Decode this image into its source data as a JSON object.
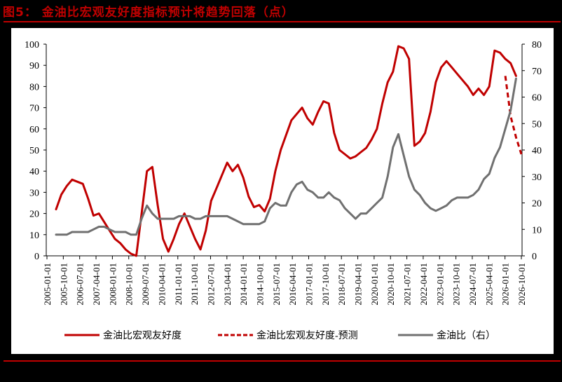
{
  "header": {
    "title": "图5：  金油比宏观友好度指标预计将趋势回落（点）"
  },
  "colors": {
    "background": "#000000",
    "panel": "#ffffff",
    "accent_red": "#c00000",
    "series_red": "#c00000",
    "series_gray": "#707070",
    "axis": "#000000"
  },
  "chart_data": {
    "type": "line",
    "title": "金油比宏观友好度指标预计将趋势回落（点）",
    "xlabel": "",
    "ylabel_left": "",
    "ylabel_right": "",
    "ylim_left": [
      0,
      100
    ],
    "ylim_right": [
      0,
      80
    ],
    "yticks_left": [
      0,
      10,
      20,
      30,
      40,
      50,
      60,
      70,
      80,
      90,
      100
    ],
    "yticks_right": [
      0,
      10,
      20,
      30,
      40,
      50,
      60,
      70,
      80
    ],
    "grid": false,
    "legend_position": "bottom",
    "x_tick_labels": [
      "2005-01-01",
      "2005-10-01",
      "2006-07-01",
      "2007-04-01",
      "2008-01-01",
      "2008-10-01",
      "2009-07-01",
      "2010-04-01",
      "2011-01-01",
      "2011-10-01",
      "2012-07-01",
      "2013-04-01",
      "2014-01-01",
      "2014-10-01",
      "2015-07-01",
      "2016-04-01",
      "2017-01-01",
      "2017-10-01",
      "2018-07-01",
      "2019-04-01",
      "2020-01-01",
      "2020-10-01",
      "2021-07-01",
      "2022-04-01",
      "2023-01-01",
      "2023-10-01",
      "2024-07-01",
      "2025-04-01",
      "2026-01-01",
      "2026-10-01"
    ],
    "x": [
      "2005-01",
      "2005-04",
      "2005-07",
      "2005-10",
      "2006-01",
      "2006-04",
      "2006-07",
      "2006-10",
      "2007-01",
      "2007-04",
      "2007-07",
      "2007-10",
      "2008-01",
      "2008-04",
      "2008-07",
      "2008-10",
      "2009-01",
      "2009-04",
      "2009-07",
      "2009-10",
      "2010-01",
      "2010-04",
      "2010-07",
      "2010-10",
      "2011-01",
      "2011-04",
      "2011-07",
      "2011-10",
      "2012-01",
      "2012-04",
      "2012-07",
      "2012-10",
      "2013-01",
      "2013-04",
      "2013-07",
      "2013-10",
      "2014-01",
      "2014-04",
      "2014-07",
      "2014-10",
      "2015-01",
      "2015-04",
      "2015-07",
      "2015-10",
      "2016-01",
      "2016-04",
      "2016-07",
      "2016-10",
      "2017-01",
      "2017-04",
      "2017-07",
      "2017-10",
      "2018-01",
      "2018-04",
      "2018-07",
      "2018-10",
      "2019-01",
      "2019-04",
      "2019-07",
      "2019-10",
      "2020-01",
      "2020-04",
      "2020-07",
      "2020-10",
      "2021-01",
      "2021-04",
      "2021-07",
      "2021-10",
      "2022-01",
      "2022-04",
      "2022-07",
      "2022-10",
      "2023-01",
      "2023-04",
      "2023-07",
      "2023-10",
      "2024-01",
      "2024-04",
      "2024-07",
      "2024-10",
      "2025-01",
      "2025-04",
      "2025-07",
      "2025-10",
      "2026-01",
      "2026-04",
      "2026-07",
      "2026-10"
    ],
    "series": [
      {
        "name": "金油比宏观友好度",
        "axis": "left",
        "style": "solid",
        "values": [
          22,
          29,
          33,
          36,
          35,
          34,
          27,
          19,
          20,
          16,
          12,
          8,
          6,
          3,
          1,
          0,
          20,
          40,
          42,
          24,
          8,
          2,
          8,
          15,
          20,
          14,
          8,
          3,
          12,
          26,
          32,
          38,
          44,
          40,
          43,
          37,
          28,
          23,
          24,
          21,
          27,
          40,
          50,
          57,
          64,
          67,
          70,
          65,
          62,
          68,
          73,
          72,
          58,
          50,
          48,
          46,
          47,
          49,
          51,
          55,
          60,
          72,
          82,
          87,
          99,
          98,
          93,
          52,
          54,
          58,
          68,
          82,
          89,
          92,
          89,
          86,
          83,
          80,
          76,
          79,
          76,
          80,
          97,
          96,
          93,
          91,
          85,
          null
        ],
        "values_approx": true
      },
      {
        "name": "金油比宏观友好度-预测",
        "axis": "left",
        "style": "dashed",
        "values_start_index": 84,
        "values": [
          85,
          66,
          56,
          48
        ]
      },
      {
        "name": "金油比（右）",
        "axis": "right",
        "style": "solid",
        "values": [
          8,
          8,
          8,
          9,
          9,
          9,
          9,
          10,
          11,
          11,
          10,
          9,
          9,
          9,
          8,
          8,
          14,
          19,
          16,
          14,
          14,
          14,
          14,
          15,
          15,
          15,
          14,
          14,
          15,
          15,
          15,
          15,
          15,
          14,
          13,
          12,
          12,
          12,
          12,
          13,
          18,
          20,
          19,
          19,
          24,
          27,
          28,
          25,
          24,
          22,
          22,
          24,
          22,
          21,
          18,
          16,
          14,
          16,
          16,
          18,
          20,
          22,
          30,
          41,
          46,
          38,
          30,
          25,
          23,
          20,
          18,
          17,
          18,
          19,
          21,
          22,
          22,
          22,
          23,
          25,
          29,
          31,
          37,
          41,
          48,
          55,
          67,
          null
        ],
        "values_approx": true
      }
    ]
  },
  "legend": {
    "items": [
      {
        "label": "金油比宏观友好度",
        "style": "solid",
        "color": "#c00000"
      },
      {
        "label": "金油比宏观友好度-预测",
        "style": "dashed",
        "color": "#c00000"
      },
      {
        "label": "金油比（右）",
        "style": "solid",
        "color": "#707070"
      }
    ]
  }
}
